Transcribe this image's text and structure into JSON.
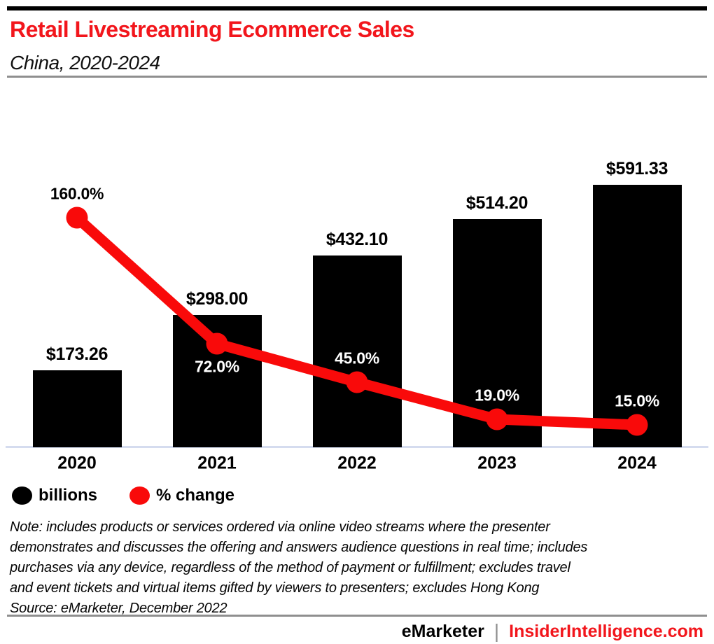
{
  "chart_data": {
    "type": "combo-bar-line",
    "title": "Retail Livestreaming Ecommerce Sales",
    "subtitle": "China, 2020-2024",
    "categories": [
      "2020",
      "2021",
      "2022",
      "2023",
      "2024"
    ],
    "series": [
      {
        "name": "billions",
        "type": "bar",
        "color": "#000000",
        "values": [
          173.26,
          298.0,
          432.1,
          514.2,
          591.33
        ],
        "labels": [
          "$173.26",
          "$298.00",
          "$432.10",
          "$514.20",
          "$591.33"
        ]
      },
      {
        "name": "% change",
        "type": "line",
        "color": "#f90a0a",
        "values": [
          160.0,
          72.0,
          45.0,
          19.0,
          15.0
        ],
        "labels": [
          "160.0%",
          "72.0%",
          "45.0%",
          "19.0%",
          "15.0%"
        ],
        "label_positions": [
          "above",
          "below",
          "above",
          "above",
          "above"
        ],
        "label_colors": [
          "#000000",
          "#ffffff",
          "#ffffff",
          "#ffffff",
          "#ffffff"
        ]
      }
    ],
    "bar_axis_range": [
      0,
      630
    ],
    "line_axis_range": [
      0,
      160
    ],
    "grid": false,
    "legend_position": "bottom-left"
  },
  "legend": {
    "items": [
      {
        "label": "billions",
        "color": "#000000"
      },
      {
        "label": "% change",
        "color": "#f90a0a"
      }
    ]
  },
  "note_lines": [
    "Note: includes products or services ordered via online video streams where the presenter",
    "demonstrates and discusses the offering and answers audience questions in real time; includes",
    "purchases via any device, regardless of the method of payment or fulfillment; excludes travel",
    "and event tickets and virtual items gifted by viewers to presenters; excludes Hong Kong"
  ],
  "source": "Source: eMarketer, December 2022",
  "footer": {
    "brand": "eMarketer",
    "separator": "|",
    "site": "InsiderIntelligence.com"
  },
  "colors": {
    "brand_red": "#f2161c",
    "chart_red": "#f90a0a",
    "bar_black": "#000000",
    "axis_line": "#d5dcef",
    "rule_gray": "#8f8f8f",
    "background": "#ffffff"
  }
}
